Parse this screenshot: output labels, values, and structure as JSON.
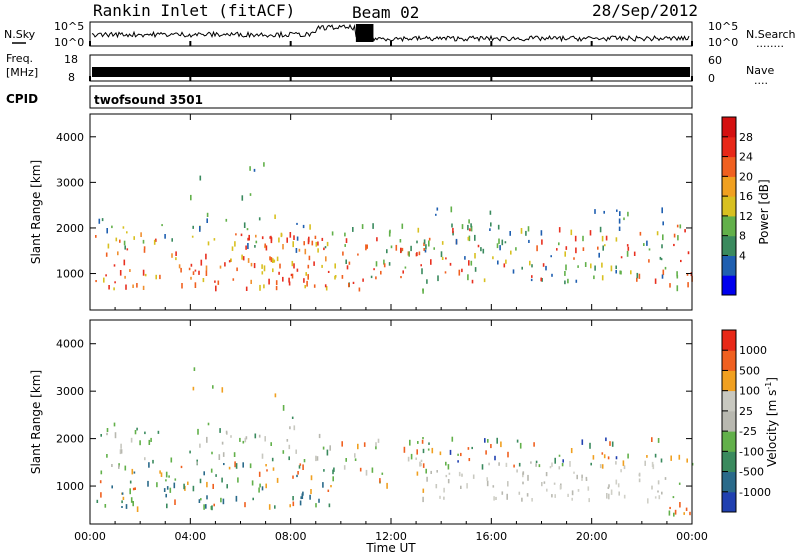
{
  "header": {
    "station": "Rankin Inlet (fitACF)",
    "beam": "Beam 02",
    "date": "28/Sep/2012"
  },
  "strip_panels": {
    "nsky": {
      "left_label": "N.Sky",
      "right_label": "N.Search",
      "right_dots": "........",
      "top_tick": "10^5",
      "bottom_tick": "10^0"
    },
    "freq": {
      "left_label_1": "Freq.",
      "left_label_2": "[MHz]",
      "left_top": "18",
      "left_bottom": "8",
      "right_label": "Nave",
      "right_dots": "....",
      "right_top": "60",
      "right_bottom": "0"
    },
    "cpid": {
      "label": "CPID",
      "value": "twofsound 3501"
    }
  },
  "chart_data": [
    {
      "type": "heatmap",
      "quantity": "Power",
      "ylabel": "Slant Range [km]",
      "ylim": [
        200,
        4500
      ],
      "yticks": [
        1000,
        2000,
        3000,
        4000
      ],
      "xlim_hours": [
        0,
        24
      ],
      "xticks": [
        "00:00",
        "04:00",
        "08:00",
        "12:00",
        "16:00",
        "20:00",
        "00:00"
      ],
      "colorbar": {
        "label": "Power [dB]",
        "ticks": [
          "28",
          "24",
          "20",
          "16",
          "12",
          "8",
          "4"
        ],
        "colors": [
          "#0000ee",
          "#1f5fb0",
          "#3a8a5e",
          "#62b04a",
          "#d8c020",
          "#f0a020",
          "#f06020",
          "#e82818",
          "#d41010"
        ]
      },
      "bands": [
        {
          "x0": 0.2,
          "x1": 9.8,
          "r0": 650,
          "r1": 1900,
          "dens": 0.9,
          "cols": [
            "#e83020",
            "#f06020",
            "#f09030",
            "#d8c020",
            "#e83020"
          ]
        },
        {
          "x0": 0.2,
          "x1": 9.8,
          "r0": 1500,
          "r1": 2300,
          "dens": 0.35,
          "cols": [
            "#3a8a5e",
            "#62b04a",
            "#d8c020",
            "#1f5fb0"
          ]
        },
        {
          "x0": 10.0,
          "x1": 13.5,
          "r0": 600,
          "r1": 2100,
          "dens": 0.75,
          "cols": [
            "#f06020",
            "#e83020",
            "#3a8a5e",
            "#62b04a"
          ]
        },
        {
          "x0": 13.0,
          "x1": 23.0,
          "r0": 800,
          "r1": 2000,
          "dens": 0.8,
          "cols": [
            "#e83020",
            "#f06020",
            "#3a8a5e",
            "#1f5fb0",
            "#d8c020",
            "#62b04a"
          ]
        },
        {
          "x0": 13.0,
          "x1": 23.0,
          "r0": 1900,
          "r1": 2500,
          "dens": 0.3,
          "cols": [
            "#1f5fb0",
            "#3a8a5e",
            "#62b04a"
          ]
        },
        {
          "x0": 23.0,
          "x1": 24.0,
          "r0": 350,
          "r1": 2100,
          "dens": 0.7,
          "cols": [
            "#e82818",
            "#f06020",
            "#62b04a"
          ]
        },
        {
          "x0": 3.0,
          "x1": 8.5,
          "r0": 2300,
          "r1": 3500,
          "dens": 0.08,
          "cols": [
            "#3a8a5e",
            "#62b04a",
            "#1f5fb0"
          ]
        }
      ]
    },
    {
      "type": "heatmap",
      "quantity": "Velocity",
      "ylabel": "Slant Range [km]",
      "ylim": [
        200,
        4500
      ],
      "yticks": [
        1000,
        2000,
        3000,
        4000
      ],
      "xlim_hours": [
        0,
        24
      ],
      "xlabel": "Time UT",
      "xticks": [
        "00:00",
        "04:00",
        "08:00",
        "12:00",
        "16:00",
        "20:00",
        "00:00"
      ],
      "colorbar": {
        "label": "Velocity [m s^-1]",
        "ticks": [
          "1000",
          "500",
          "100",
          "25",
          "-25",
          "-100",
          "-500",
          "-1000"
        ],
        "colors": [
          "#2040b0",
          "#2a6a8a",
          "#3a8a5e",
          "#62b04a",
          "#b8b8b0",
          "#c8c8c0",
          "#f0a020",
          "#f06020",
          "#e82818"
        ]
      },
      "bands": [
        {
          "x0": 0.2,
          "x1": 9.8,
          "r0": 500,
          "r1": 1500,
          "dens": 0.85,
          "cols": [
            "#3a8a5e",
            "#f0a020",
            "#f06020",
            "#62b04a",
            "#2a6a8a"
          ]
        },
        {
          "x0": 0.2,
          "x1": 9.8,
          "r0": 1400,
          "r1": 2300,
          "dens": 0.55,
          "cols": [
            "#c8c8c0",
            "#b8b8b0",
            "#62b04a",
            "#3a8a5e"
          ]
        },
        {
          "x0": 10.0,
          "x1": 13.5,
          "r0": 900,
          "r1": 2000,
          "dens": 0.6,
          "cols": [
            "#f0a020",
            "#f06020",
            "#62b04a",
            "#c8c8c0"
          ]
        },
        {
          "x0": 13.0,
          "x1": 23.0,
          "r0": 700,
          "r1": 1500,
          "dens": 0.85,
          "cols": [
            "#c8c8c0",
            "#b8b8b0",
            "#d0d0c8"
          ]
        },
        {
          "x0": 13.0,
          "x1": 23.0,
          "r0": 1400,
          "r1": 2000,
          "dens": 0.7,
          "cols": [
            "#f0a020",
            "#62b04a",
            "#3a8a5e",
            "#f06020",
            "#2040b0"
          ]
        },
        {
          "x0": 23.0,
          "x1": 24.0,
          "r0": 350,
          "r1": 1800,
          "dens": 0.7,
          "cols": [
            "#f0a020",
            "#f06020",
            "#62b04a"
          ]
        },
        {
          "x0": 3.0,
          "x1": 8.5,
          "r0": 2300,
          "r1": 3500,
          "dens": 0.08,
          "cols": [
            "#3a8a5e",
            "#62b04a",
            "#f0a020"
          ]
        }
      ]
    }
  ]
}
